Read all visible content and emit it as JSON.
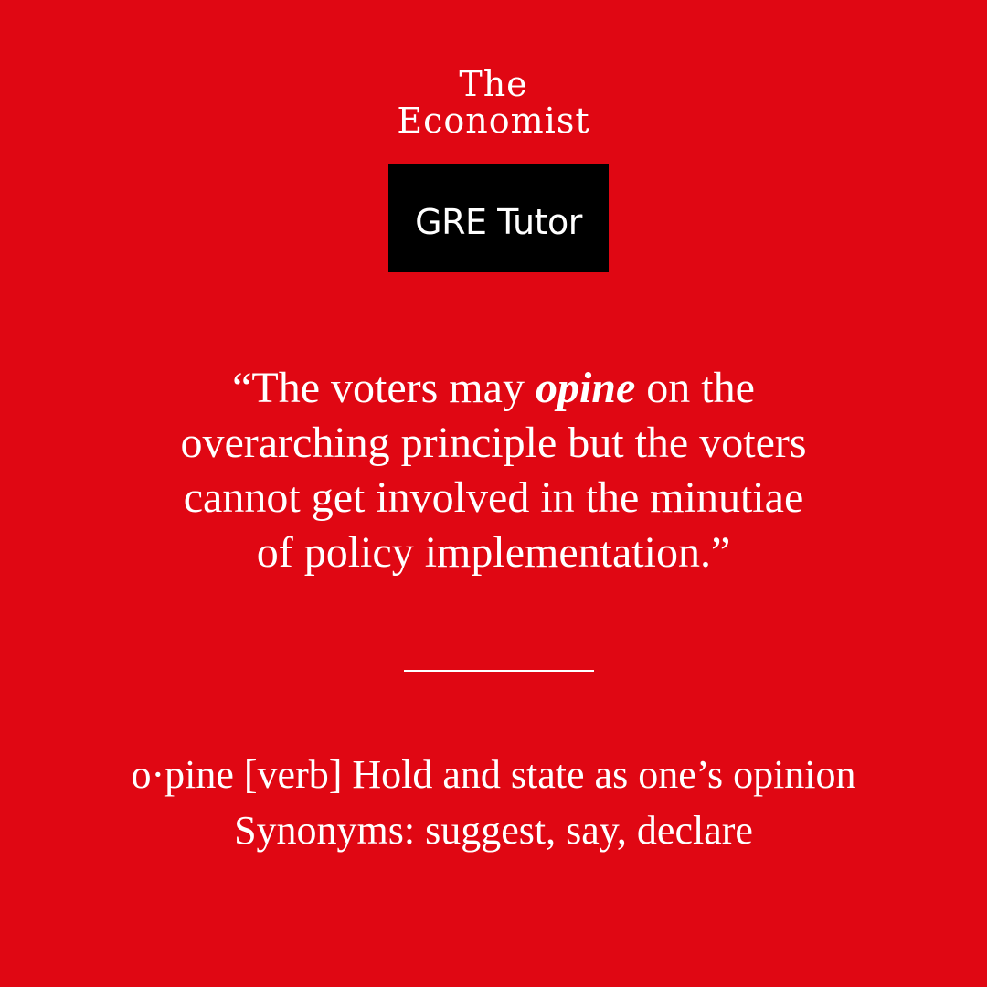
{
  "logo": {
    "line1": "The",
    "line2": "Economist"
  },
  "badge": {
    "label": "GRE Tutor"
  },
  "quote": {
    "line1_before": "“The voters may ",
    "line1_word": "opine",
    "line1_after": " on the",
    "line2": "overarching principle but the voters",
    "line3": "cannot get involved in the minutiae",
    "line4": "of policy implementation.”"
  },
  "definition": {
    "line1": "o·pine [verb] Hold and state as one’s opinion",
    "line2": "Synonyms: suggest, say, declare"
  },
  "colors": {
    "background": "#e00713",
    "badge_background": "#000000",
    "text": "#ffffff"
  }
}
